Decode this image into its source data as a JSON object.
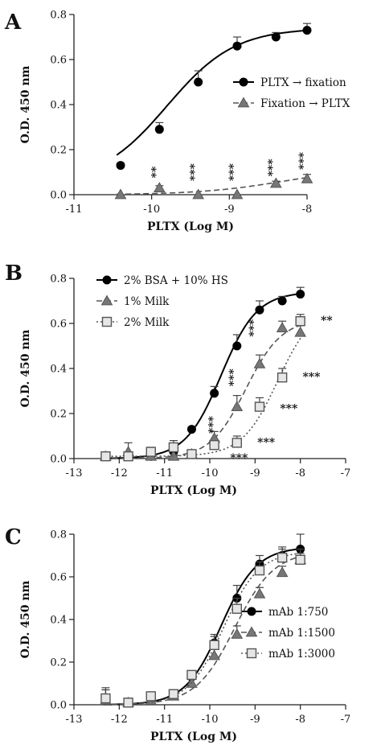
{
  "chart_data": [
    {
      "panel": "A",
      "type": "line",
      "xlabel": "PLTX (Log M)",
      "ylabel": "O.D. 450 nm",
      "xlim": [
        -11,
        -8
      ],
      "ylim": [
        0,
        0.8
      ],
      "xticks": [
        "-11",
        "-10",
        "-9",
        "-8"
      ],
      "yticks": [
        "0.0",
        "0.2",
        "0.4",
        "0.6",
        "0.8"
      ],
      "legend_position": "right",
      "series": [
        {
          "name": "PLTX → fixation",
          "marker": "circle-filled",
          "line": "solid",
          "x": [
            -10.4,
            -9.9,
            -9.4,
            -8.9,
            -8.4,
            -8.0
          ],
          "y": [
            0.13,
            0.29,
            0.5,
            0.66,
            0.7,
            0.73
          ],
          "err": [
            0.01,
            0.03,
            0.05,
            0.04,
            0.02,
            0.03
          ],
          "curve": {
            "bottom": 0.05,
            "top": 0.74,
            "ec50": -9.8,
            "hill": 1.0
          }
        },
        {
          "name": "Fixation → PLTX",
          "marker": "triangle-gray",
          "line": "dashed",
          "x": [
            -10.4,
            -9.9,
            -9.4,
            -8.9,
            -8.4,
            -8.0
          ],
          "y": [
            0.0,
            0.03,
            0.0,
            0.0,
            0.05,
            0.07
          ],
          "err": [
            0.0,
            0.01,
            0.0,
            0.0,
            0.01,
            0.02
          ],
          "curve": {
            "bottom": 0.0,
            "top": 0.12,
            "ec50": -8.3,
            "hill": 0.8
          }
        }
      ],
      "annotations": [
        {
          "text": "**",
          "x": -9.9,
          "y": 0.05
        },
        {
          "text": "***",
          "x": -9.4,
          "y": 0.05
        },
        {
          "text": "***",
          "x": -8.9,
          "y": 0.05
        },
        {
          "text": "***",
          "x": -8.4,
          "y": 0.07
        },
        {
          "text": "***",
          "x": -8.0,
          "y": 0.1
        }
      ]
    },
    {
      "panel": "B",
      "type": "line",
      "xlabel": "PLTX (Log M)",
      "ylabel": "O.D. 450 nm",
      "xlim": [
        -13,
        -7
      ],
      "ylim": [
        0,
        0.8
      ],
      "xticks": [
        "-13",
        "-12",
        "-11",
        "-10",
        "-9",
        "-8",
        "-7"
      ],
      "yticks": [
        "0.0",
        "0.2",
        "0.4",
        "0.6",
        "0.8"
      ],
      "legend_position": "top-left",
      "series": [
        {
          "name": "2% BSA + 10% HS",
          "marker": "circle-filled",
          "line": "solid",
          "x": [
            -12.3,
            -11.8,
            -11.3,
            -10.8,
            -10.4,
            -9.9,
            -9.4,
            -8.9,
            -8.4,
            -8.0
          ],
          "y": [
            0.01,
            0.01,
            0.01,
            0.03,
            0.13,
            0.29,
            0.5,
            0.66,
            0.7,
            0.73
          ],
          "err": [
            0.02,
            0.02,
            0.01,
            0.02,
            0.01,
            0.03,
            0.05,
            0.04,
            0.02,
            0.03
          ],
          "curve": {
            "bottom": 0.0,
            "top": 0.74,
            "ec50": -9.75,
            "hill": 1.1
          }
        },
        {
          "name": "1% Milk",
          "marker": "triangle-gray",
          "line": "dashed",
          "x": [
            -12.3,
            -11.8,
            -11.3,
            -10.8,
            -10.4,
            -9.9,
            -9.4,
            -8.9,
            -8.4,
            -8.0
          ],
          "y": [
            0.01,
            0.03,
            0.01,
            0.01,
            0.02,
            0.09,
            0.23,
            0.42,
            0.58,
            0.56
          ],
          "err": [
            0.02,
            0.04,
            0.02,
            0.01,
            0.01,
            0.03,
            0.05,
            0.04,
            0.03,
            0.03
          ],
          "curve": {
            "bottom": 0.0,
            "top": 0.62,
            "ec50": -9.2,
            "hill": 1.1
          }
        },
        {
          "name": "2% Milk",
          "marker": "square-open",
          "line": "dotted",
          "x": [
            -12.3,
            -11.8,
            -11.3,
            -10.8,
            -10.4,
            -9.9,
            -9.4,
            -8.9,
            -8.4,
            -8.0
          ],
          "y": [
            0.01,
            0.01,
            0.03,
            0.05,
            0.02,
            0.06,
            0.07,
            0.23,
            0.36,
            0.61
          ],
          "err": [
            0.02,
            0.02,
            0.02,
            0.03,
            0.01,
            0.02,
            0.03,
            0.04,
            0.04,
            0.03
          ],
          "curve": {
            "bottom": 0.01,
            "top": 0.68,
            "ec50": -8.5,
            "hill": 1.1
          }
        }
      ],
      "annotations": [
        {
          "text": "***",
          "x": -9.85,
          "y": 0.15,
          "orient": "vertical"
        },
        {
          "text": "***",
          "x": -9.4,
          "y": 0.36,
          "orient": "vertical"
        },
        {
          "text": "***",
          "x": -8.95,
          "y": 0.58,
          "orient": "vertical"
        },
        {
          "text": "***",
          "x": -9.55,
          "y": 0.0
        },
        {
          "text": "***",
          "x": -8.95,
          "y": 0.07
        },
        {
          "text": "***",
          "x": -8.45,
          "y": 0.22
        },
        {
          "text": "***",
          "x": -7.95,
          "y": 0.36
        },
        {
          "text": "**",
          "x": -7.55,
          "y": 0.61
        }
      ]
    },
    {
      "panel": "C",
      "type": "line",
      "xlabel": "PLTX (Log M)",
      "ylabel": "O.D. 450 nm",
      "xlim": [
        -13,
        -7
      ],
      "ylim": [
        0,
        0.8
      ],
      "xticks": [
        "-13",
        "-12",
        "-11",
        "-10",
        "-9",
        "-8",
        "-7"
      ],
      "yticks": [
        "0.0",
        "0.2",
        "0.4",
        "0.6",
        "0.8"
      ],
      "legend_position": "bottom-right",
      "series": [
        {
          "name": "mAb 1:750",
          "marker": "circle-filled",
          "line": "solid",
          "x": [
            -12.3,
            -11.8,
            -11.3,
            -10.8,
            -10.4,
            -9.9,
            -9.4,
            -8.9,
            -8.4,
            -8.0
          ],
          "y": [
            0.02,
            0.01,
            0.03,
            0.05,
            0.13,
            0.29,
            0.5,
            0.66,
            0.7,
            0.73
          ],
          "err": [
            0.05,
            0.02,
            0.02,
            0.02,
            0.02,
            0.04,
            0.06,
            0.04,
            0.04,
            0.07
          ],
          "curve": {
            "bottom": 0.0,
            "top": 0.74,
            "ec50": -9.75,
            "hill": 1.1
          }
        },
        {
          "name": "mAb 1:1500",
          "marker": "triangle-gray",
          "line": "dashed",
          "x": [
            -12.3,
            -11.8,
            -11.3,
            -10.8,
            -10.4,
            -9.9,
            -9.4,
            -8.9,
            -8.4,
            -8.0
          ],
          "y": [
            0.02,
            0.01,
            0.02,
            0.04,
            0.1,
            0.23,
            0.33,
            0.52,
            0.62,
            0.68
          ],
          "err": [
            0.05,
            0.02,
            0.02,
            0.02,
            0.02,
            0.03,
            0.04,
            0.03,
            0.03,
            0.03
          ],
          "curve": {
            "bottom": 0.0,
            "top": 0.72,
            "ec50": -9.45,
            "hill": 1.0
          }
        },
        {
          "name": "mAb 1:3000",
          "marker": "square-open",
          "line": "dotted",
          "x": [
            -12.3,
            -11.8,
            -11.3,
            -10.8,
            -10.4,
            -9.9,
            -9.4,
            -8.9,
            -8.4,
            -8.0
          ],
          "y": [
            0.03,
            0.01,
            0.04,
            0.05,
            0.14,
            0.28,
            0.45,
            0.63,
            0.69,
            0.68
          ],
          "err": [
            0.05,
            0.02,
            0.02,
            0.02,
            0.02,
            0.04,
            0.05,
            0.04,
            0.04,
            0.05
          ],
          "curve": {
            "bottom": 0.0,
            "top": 0.72,
            "ec50": -9.7,
            "hill": 1.1
          }
        }
      ],
      "annotations": []
    }
  ]
}
